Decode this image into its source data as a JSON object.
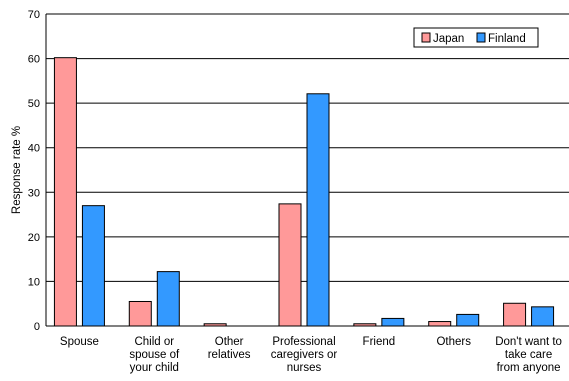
{
  "chart_data": {
    "type": "bar",
    "title": "",
    "xlabel": "",
    "ylabel": "Response rate %",
    "ylim": [
      0,
      70
    ],
    "yticks": [
      0,
      10,
      20,
      30,
      40,
      50,
      60,
      70
    ],
    "grid": true,
    "legend_position": "top-right",
    "categories": [
      [
        "Spouse"
      ],
      [
        "Child or",
        "spouse of",
        "your child"
      ],
      [
        "Other",
        "relatives"
      ],
      [
        "Professional",
        "caregivers or",
        "nurses"
      ],
      [
        "Friend"
      ],
      [
        "Others"
      ],
      [
        "Don't want to",
        "take care",
        "from anyone"
      ]
    ],
    "series": [
      {
        "name": "Japan",
        "color": "#ff9999",
        "values": [
          60.2,
          5.5,
          0.5,
          27.4,
          0.5,
          1.0,
          5.1
        ]
      },
      {
        "name": "Finland",
        "color": "#3399ff",
        "values": [
          27.0,
          12.2,
          0.0,
          52.1,
          1.7,
          2.6,
          4.3
        ]
      }
    ]
  }
}
